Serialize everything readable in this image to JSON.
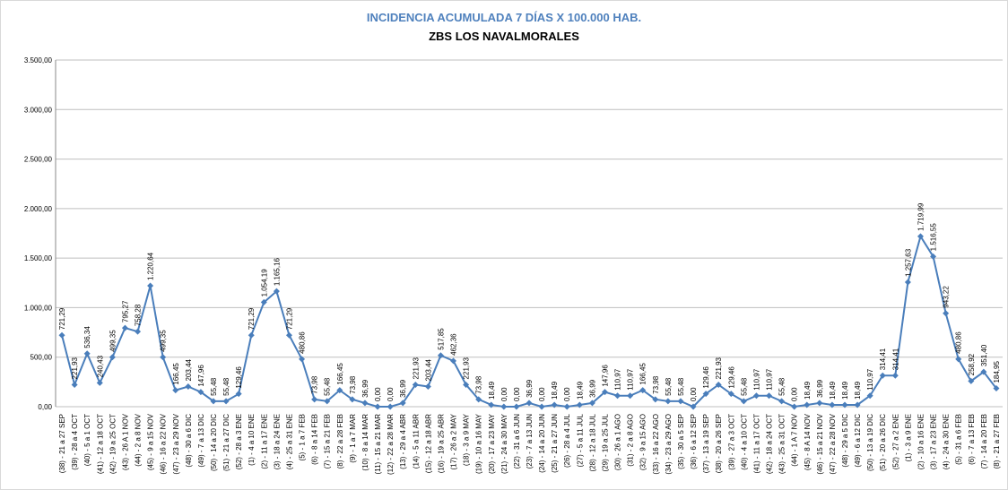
{
  "chart_data": {
    "type": "line",
    "title": "INCIDENCIA ACUMULADA 7 DÍAS X 100.000 HAB.",
    "subtitle": "ZBS LOS NAVALMORALES",
    "categories": [
      "(38) - 21 a 27 SEP",
      "(39) - 28 a 4 OCT",
      "(40) - 5 a 1 OCT",
      "(41) - 12 a 18 OCT",
      "(42) - 19 a 25 OCT",
      "(43) - 26 A 1 NOV",
      "(44) - 2 a 8 NOV",
      "(45) - 9 a 15 NOV",
      "(46) - 16 a 22 NOV",
      "(47) - 23 a 29 NOV",
      "(48) - 30 a 6 DIC",
      "(49) - 7 a 13 DIC",
      "(50) - 14 a 20 DIC",
      "(51) - 21 a 27 DIC",
      "(52) - 28 a 3 ENE",
      "(1) - 4 a 10 ENE",
      "(2) - 11 a 17 ENE",
      "(3) - 18 a 24 ENE",
      "(4) - 25 a 31 ENE",
      "(5) - 1 a 7 FEB",
      "(6) - 8 a 14 FEB",
      "(7) - 15 a 21 FEB",
      "(8) - 22 a 28 FEB",
      "(9) - 1 a 7 MAR",
      "(10) - 8 a 14 MAR",
      "(11) - 15 a 21 MAR",
      "(12) - 22 a 28 MAR",
      "(13) - 29 a 4 ABR",
      "(14) - 5 a 11 ABR",
      "(15) - 12 a 18 ABR",
      "(16) - 19 a 25 ABR",
      "(17) - 26 a 2 MAY",
      "(18) - 3 a 9 MAY",
      "(19) - 10 a 16 MAY",
      "(20) - 17 a 23 MAY",
      "(21) - 24 a 30 MAY",
      "(22) - 31 a 6 JUN",
      "(23) - 7 a 13 JUN",
      "(24) - 14 a 20 JUN",
      "(25) - 21 a 27 JUN",
      "(26) - 28 a 4 JUL",
      "(27) - 5 a 11 JUL",
      "(28) - 12 a 18 JUL",
      "(29) - 19 a 25 JUL",
      "(30) - 26 a 1 AGO",
      "(31) - 2 a 8 AGO",
      "(32) - 9 a 15 AGO",
      "(33) - 16 a 22 AGO",
      "(34) - 23 a 29 AGO",
      "(35) - 30 a 5 SEP",
      "(36) - 6 a 12 SEP",
      "(37) - 13 a 19 SEP",
      "(38) - 20 a 26 SEP",
      "(39) - 27 a 3 OCT",
      "(40) - 4 a 10 OCT",
      "(41) - 11 a 17 OCT",
      "(42) - 18 a 24 OCT",
      "(43) - 25 a 31 OCT",
      "(44) - 1 A 7 NOV",
      "(45) - 8 A 14 NOV",
      "(46) - 15 a 21 NOV",
      "(47) - 22 a 28 NOV",
      "(48) - 29 a 5 DIC",
      "(49) - 6 a 12 DIC",
      "(50) - 13 a 19 DIC",
      "(51) - 20 a 26 DIC",
      "(52) - 27 a 2 ENE",
      "(1) - 3 a 9 ENE",
      "(2) - 10 a 16 ENE",
      "(3) - 17 a 23 ENE",
      "(4) - 24 a 30 ENE",
      "(5) - 31 a 6 FEB",
      "(6) - 7 a 13 FEB",
      "(7) - 14 a 20 FEB",
      "(8) - 21 a 27 FEB"
    ],
    "values": [
      721.29,
      221.93,
      536.34,
      240.43,
      499.35,
      795.27,
      758.28,
      1220.64,
      499.35,
      166.45,
      203.44,
      147.96,
      55.48,
      55.48,
      129.46,
      721.29,
      1054.19,
      1165.16,
      721.29,
      480.86,
      73.98,
      55.48,
      166.45,
      73.98,
      36.99,
      0,
      0,
      36.99,
      221.93,
      203.44,
      517.85,
      462.36,
      221.93,
      73.98,
      18.49,
      0,
      0,
      36.99,
      0,
      18.49,
      0,
      18.49,
      36.99,
      147.96,
      110.97,
      110.97,
      166.45,
      73.98,
      55.48,
      55.48,
      0,
      129.46,
      221.93,
      129.46,
      55.48,
      110.97,
      110.97,
      55.48,
      0,
      18.49,
      36.99,
      18.49,
      18.49,
      18.49,
      110.97,
      314.41,
      314.41,
      1257.63,
      1719.99,
      1516.55,
      943.22,
      480.86,
      258.92,
      351.4,
      184.95
    ],
    "value_labels": [
      "721,29",
      "221,93",
      "536,34",
      "240,43",
      "499,35",
      "795,27",
      "758,28",
      "1.220,64",
      "499,35",
      "166,45",
      "203,44",
      "147,96",
      "55,48",
      "55,48",
      "129,46",
      "721,29",
      "1.054,19",
      "1.165,16",
      "721,29",
      "480,86",
      "73,98",
      "55,48",
      "166,45",
      "73,98",
      "36,99",
      "0,00",
      "0,00",
      "36,99",
      "221,93",
      "203,44",
      "517,85",
      "462,36",
      "221,93",
      "73,98",
      "18,49",
      "0,00",
      "0,00",
      "36,99",
      "0,00",
      "18,49",
      "0,00",
      "18,49",
      "36,99",
      "147,96",
      "110,97",
      "110,97",
      "166,45",
      "73,98",
      "55,48",
      "55,48",
      "0,00",
      "129,46",
      "221,93",
      "129,46",
      "55,48",
      "110,97",
      "110,97",
      "55,48",
      "0,00",
      "18,49",
      "36,99",
      "18,49",
      "18,49",
      "18,49",
      "110,97",
      "314,41",
      "314,41",
      "1.257,63",
      "1.719,99",
      "1.516,55",
      "943,22",
      "480,86",
      "258,92",
      "351,40",
      "184,95"
    ],
    "color": "#4a7ebb",
    "ylim": [
      0,
      3500
    ],
    "yticks": [
      {
        "value": 0,
        "label": "0,00"
      },
      {
        "value": 500,
        "label": "500,00"
      },
      {
        "value": 1000,
        "label": "1.000,00"
      },
      {
        "value": 1500,
        "label": "1.500,00"
      },
      {
        "value": 2000,
        "label": "2.000,00"
      },
      {
        "value": 2500,
        "label": "2.500,00"
      },
      {
        "value": 3000,
        "label": "3.000,00"
      },
      {
        "value": 3500,
        "label": "3.500,00"
      }
    ],
    "grid": true
  }
}
